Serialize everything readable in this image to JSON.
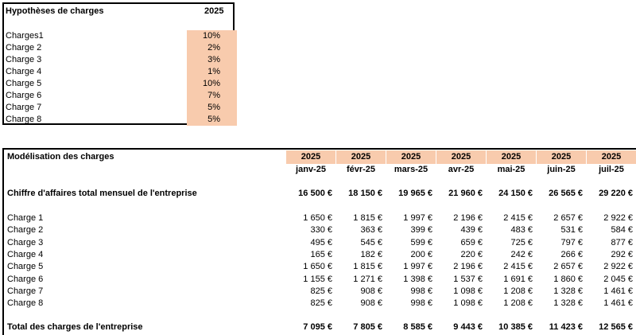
{
  "hypotheses": {
    "title": "Hypothèses de charges",
    "year": "2025",
    "rows": [
      {
        "label": "Charges1",
        "rate": "10%"
      },
      {
        "label": "Charge 2",
        "rate": "2%"
      },
      {
        "label": "Charge 3",
        "rate": "3%"
      },
      {
        "label": "Charge 4",
        "rate": "1%"
      },
      {
        "label": "Charge 5",
        "rate": "10%"
      },
      {
        "label": "Charge 6",
        "rate": "7%"
      },
      {
        "label": "Charge 7",
        "rate": "5%"
      },
      {
        "label": "Charge 8",
        "rate": "5%"
      }
    ]
  },
  "modelisation": {
    "title": "Modélisation des charges",
    "years": [
      "2025",
      "2025",
      "2025",
      "2025",
      "2025",
      "2025",
      "2025"
    ],
    "months": [
      "janv-25",
      "févr-25",
      "mars-25",
      "avr-25",
      "mai-25",
      "juin-25",
      "juil-25"
    ],
    "revenue_label": "Chiffre d'affaires total mensuel de l'entreprise",
    "revenue": [
      "16 500 €",
      "18 150 €",
      "19 965 €",
      "21 960 €",
      "24 150 €",
      "26 565 €",
      "29 220 €"
    ],
    "charges": [
      {
        "label": "Charge 1",
        "values": [
          "1 650 €",
          "1 815 €",
          "1 997 €",
          "2 196 €",
          "2 415 €",
          "2 657 €",
          "2 922 €"
        ]
      },
      {
        "label": "Charge 2",
        "values": [
          "330 €",
          "363 €",
          "399 €",
          "439 €",
          "483 €",
          "531 €",
          "584 €"
        ]
      },
      {
        "label": "Charge 3",
        "values": [
          "495 €",
          "545 €",
          "599 €",
          "659 €",
          "725 €",
          "797 €",
          "877 €"
        ]
      },
      {
        "label": "Charge 4",
        "values": [
          "165 €",
          "182 €",
          "200 €",
          "220 €",
          "242 €",
          "266 €",
          "292 €"
        ]
      },
      {
        "label": "Charge 5",
        "values": [
          "1 650 €",
          "1 815 €",
          "1 997 €",
          "2 196 €",
          "2 415 €",
          "2 657 €",
          "2 922 €"
        ]
      },
      {
        "label": "Charge 6",
        "values": [
          "1 155 €",
          "1 271 €",
          "1 398 €",
          "1 537 €",
          "1 691 €",
          "1 860 €",
          "2 045 €"
        ]
      },
      {
        "label": "Charge 7",
        "values": [
          "825 €",
          "908 €",
          "998 €",
          "1 098 €",
          "1 208 €",
          "1 328 €",
          "1 461 €"
        ]
      },
      {
        "label": "Charge 8",
        "values": [
          "825 €",
          "908 €",
          "998 €",
          "1 098 €",
          "1 208 €",
          "1 328 €",
          "1 461 €"
        ]
      }
    ],
    "total_label": "Total des charges de l'entreprise",
    "totals": [
      "7 095 €",
      "7 805 €",
      "8 585 €",
      "9 443 €",
      "10 385 €",
      "11 423 €",
      "12 565 €"
    ],
    "header_fill": "#f8cbad"
  }
}
